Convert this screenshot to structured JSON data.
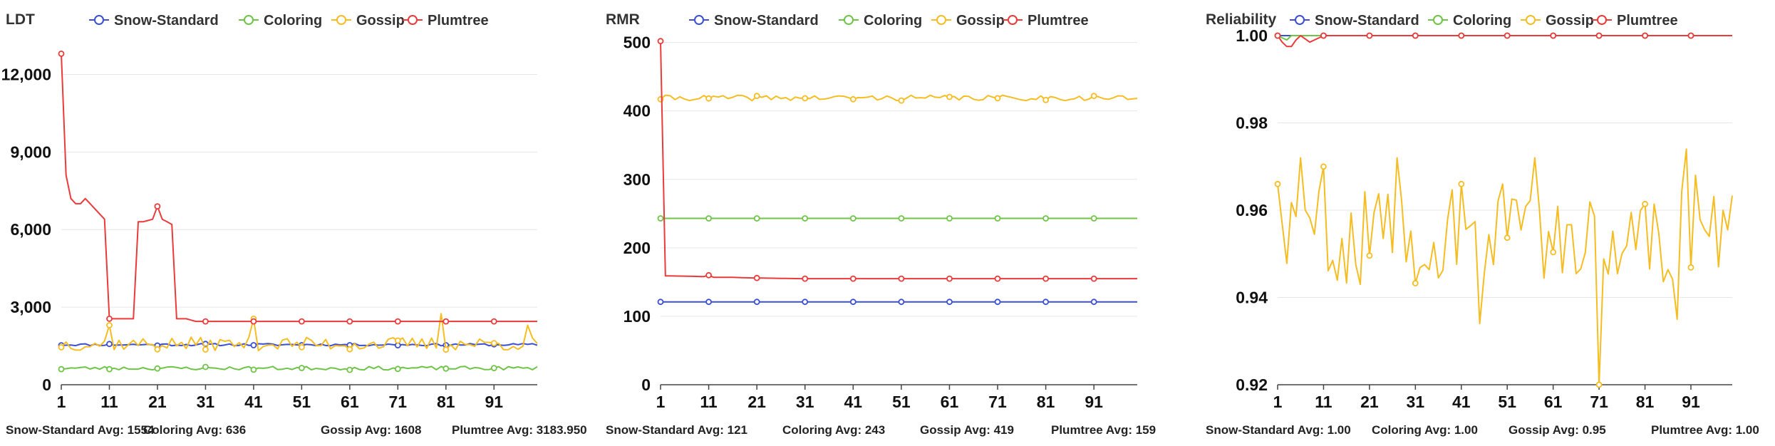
{
  "colors": {
    "Snow-Standard": "#3b4fd1",
    "Coloring": "#6ec446",
    "Gossip": "#f5bd22",
    "Plumtree": "#ea3a3a",
    "grid": "#e6e6ea",
    "axis": "#444444"
  },
  "chart_data": [
    {
      "type": "line",
      "title": "LDT",
      "x_ticks": [
        "1",
        "11",
        "21",
        "31",
        "41",
        "51",
        "61",
        "71",
        "81",
        "91"
      ],
      "x_range": [
        1,
        100
      ],
      "y_ticks": [
        "0",
        "3,000",
        "6,000",
        "9,000",
        "12,000"
      ],
      "ylim": [
        0,
        13500
      ],
      "legend": [
        "Snow-Standard",
        "Coloring",
        "Gossip",
        "Plumtree"
      ],
      "legend_position": "top",
      "grid": true,
      "series": [
        {
          "name": "Snow-Standard",
          "pattern": "flat",
          "base": 1550,
          "noise": 45,
          "seed": 11
        },
        {
          "name": "Coloring",
          "pattern": "flat",
          "base": 640,
          "noise": 70,
          "seed": 23
        },
        {
          "name": "Gossip",
          "pattern": "flat",
          "base": 1580,
          "noise": 260,
          "seed": 37,
          "spikes": [
            [
              11,
              2300
            ],
            [
              41,
              2550
            ],
            [
              80,
              2750
            ],
            [
              98,
              2300
            ]
          ]
        },
        {
          "name": "Plumtree",
          "pattern": "ldt-plumtree",
          "points": [
            [
              1,
              12800
            ],
            [
              2,
              8100
            ],
            [
              3,
              7200
            ],
            [
              4,
              7000
            ],
            [
              5,
              7000
            ],
            [
              6,
              7200
            ],
            [
              7,
              7000
            ],
            [
              8,
              6800
            ],
            [
              9,
              6600
            ],
            [
              10,
              6400
            ],
            [
              11,
              2550
            ],
            [
              12,
              2550
            ],
            [
              13,
              2550
            ],
            [
              14,
              2550
            ],
            [
              15,
              2550
            ],
            [
              16,
              2550
            ],
            [
              17,
              6300
            ],
            [
              18,
              6300
            ],
            [
              19,
              6350
            ],
            [
              20,
              6400
            ],
            [
              21,
              6900
            ],
            [
              22,
              6400
            ],
            [
              23,
              6300
            ],
            [
              24,
              6200
            ],
            [
              25,
              2550
            ],
            [
              26,
              2550
            ],
            [
              27,
              2550
            ],
            [
              28,
              2500
            ],
            [
              29,
              2450
            ],
            [
              30,
              2450
            ],
            [
              100,
              2450
            ]
          ]
        }
      ],
      "averages": [
        {
          "label": "Snow-Standard Avg: 1554"
        },
        {
          "label": "Coloring Avg: 636"
        },
        {
          "label": "Gossip Avg: 1608"
        },
        {
          "label": "Plumtree Avg: 3183.950"
        }
      ]
    },
    {
      "type": "line",
      "title": "RMR",
      "x_ticks": [
        "1",
        "11",
        "21",
        "31",
        "41",
        "51",
        "61",
        "71",
        "81",
        "91"
      ],
      "x_range": [
        1,
        100
      ],
      "y_ticks": [
        "0",
        "100",
        "200",
        "300",
        "400",
        "500"
      ],
      "ylim": [
        0,
        510
      ],
      "legend": [
        "Snow-Standard",
        "Coloring",
        "Gossip",
        "Plumtree"
      ],
      "legend_position": "top",
      "grid": true,
      "series": [
        {
          "name": "Snow-Standard",
          "pattern": "flat",
          "base": 121,
          "noise": 0,
          "seed": 5
        },
        {
          "name": "Coloring",
          "pattern": "flat",
          "base": 243,
          "noise": 0,
          "seed": 7
        },
        {
          "name": "Gossip",
          "pattern": "flat",
          "base": 419,
          "noise": 4,
          "seed": 41
        },
        {
          "name": "Plumtree",
          "pattern": "rmr-plumtree",
          "points": [
            [
              1,
              502
            ],
            [
              2,
              159
            ],
            [
              3,
              159
            ],
            [
              10,
              158
            ],
            [
              11,
              160
            ],
            [
              12,
              157
            ],
            [
              15,
              157
            ],
            [
              20,
              156
            ],
            [
              30,
              155
            ],
            [
              100,
              155
            ]
          ]
        }
      ],
      "averages": [
        {
          "label": "Snow-Standard Avg: 121"
        },
        {
          "label": "Coloring Avg: 243"
        },
        {
          "label": "Gossip Avg: 419"
        },
        {
          "label": "Plumtree Avg: 159"
        }
      ]
    },
    {
      "type": "line",
      "title": "Reliability",
      "x_ticks": [
        "1",
        "11",
        "21",
        "31",
        "41",
        "51",
        "61",
        "71",
        "81",
        "91"
      ],
      "x_range": [
        1,
        100
      ],
      "y_ticks": [
        "0.92",
        "0.94",
        "0.96",
        "0.98",
        "1.00"
      ],
      "ylim": [
        0.92,
        1.0
      ],
      "legend": [
        "Snow-Standard",
        "Coloring",
        "Gossip",
        "Plumtree"
      ],
      "legend_position": "top",
      "grid": true,
      "series": [
        {
          "name": "Snow-Standard",
          "pattern": "flat",
          "base": 1.0,
          "noise": 0,
          "seed": 3
        },
        {
          "name": "Coloring",
          "pattern": "reli-coloring",
          "points": [
            [
              1,
              1.0
            ],
            [
              2,
              0.9995
            ],
            [
              3,
              0.999
            ],
            [
              4,
              1.0
            ],
            [
              100,
              1.0
            ]
          ]
        },
        {
          "name": "Gossip",
          "pattern": "flat",
          "base": 0.954,
          "noise": 0.011,
          "seed": 59,
          "spikes": [
            [
              1,
              0.966
            ],
            [
              6,
              0.972
            ],
            [
              11,
              0.97
            ],
            [
              27,
              0.972
            ],
            [
              41,
              0.966
            ],
            [
              50,
              0.966
            ],
            [
              57,
              0.972
            ],
            [
              71,
              0.92
            ],
            [
              90,
              0.974
            ],
            [
              88,
              0.935
            ],
            [
              92,
              0.968
            ],
            [
              45,
              0.934
            ]
          ]
        },
        {
          "name": "Plumtree",
          "pattern": "reli-plumtree",
          "points": [
            [
              1,
              1.0
            ],
            [
              2,
              0.9985
            ],
            [
              3,
              0.9975
            ],
            [
              4,
              0.9975
            ],
            [
              5,
              0.999
            ],
            [
              6,
              1.0
            ],
            [
              8,
              0.9985
            ],
            [
              9,
              0.999
            ],
            [
              11,
              1.0
            ],
            [
              100,
              1.0
            ]
          ]
        }
      ],
      "averages": [
        {
          "label": "Snow-Standard Avg: 1.00"
        },
        {
          "label": "Coloring Avg: 1.00"
        },
        {
          "label": "Gossip Avg: 0.95"
        },
        {
          "label": "Plumtree Avg: 1.00"
        }
      ]
    }
  ]
}
